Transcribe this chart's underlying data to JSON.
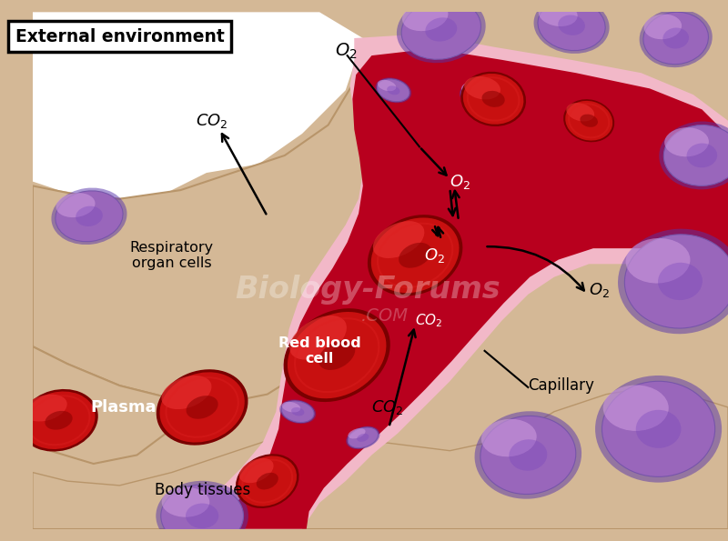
{
  "bg_color": "#D4B896",
  "capillary_wall_color": "#F2B8C8",
  "capillary_interior_color": "#B8001E",
  "pink_plasma": "#E8A8B8",
  "rbc_outer": "#8B0000",
  "rbc_main": "#CC1515",
  "rbc_bright": "#EE3535",
  "purple_dark": "#6644AA",
  "purple_mid": "#9966BB",
  "purple_light": "#CC99DD",
  "white_color": "#FFFFFF",
  "external_env_label": "External environment",
  "respiratory_label": "Respiratory\norgan cells",
  "plasma_label": "Plasma",
  "rbc_label": "Red blood\ncell",
  "body_tissues_label": "Body tissues",
  "capillary_label": "Capillary",
  "watermark1": "Biology-Forums",
  "watermark2": ".COM",
  "figsize": [
    8.0,
    5.95
  ],
  "dpi": 100
}
